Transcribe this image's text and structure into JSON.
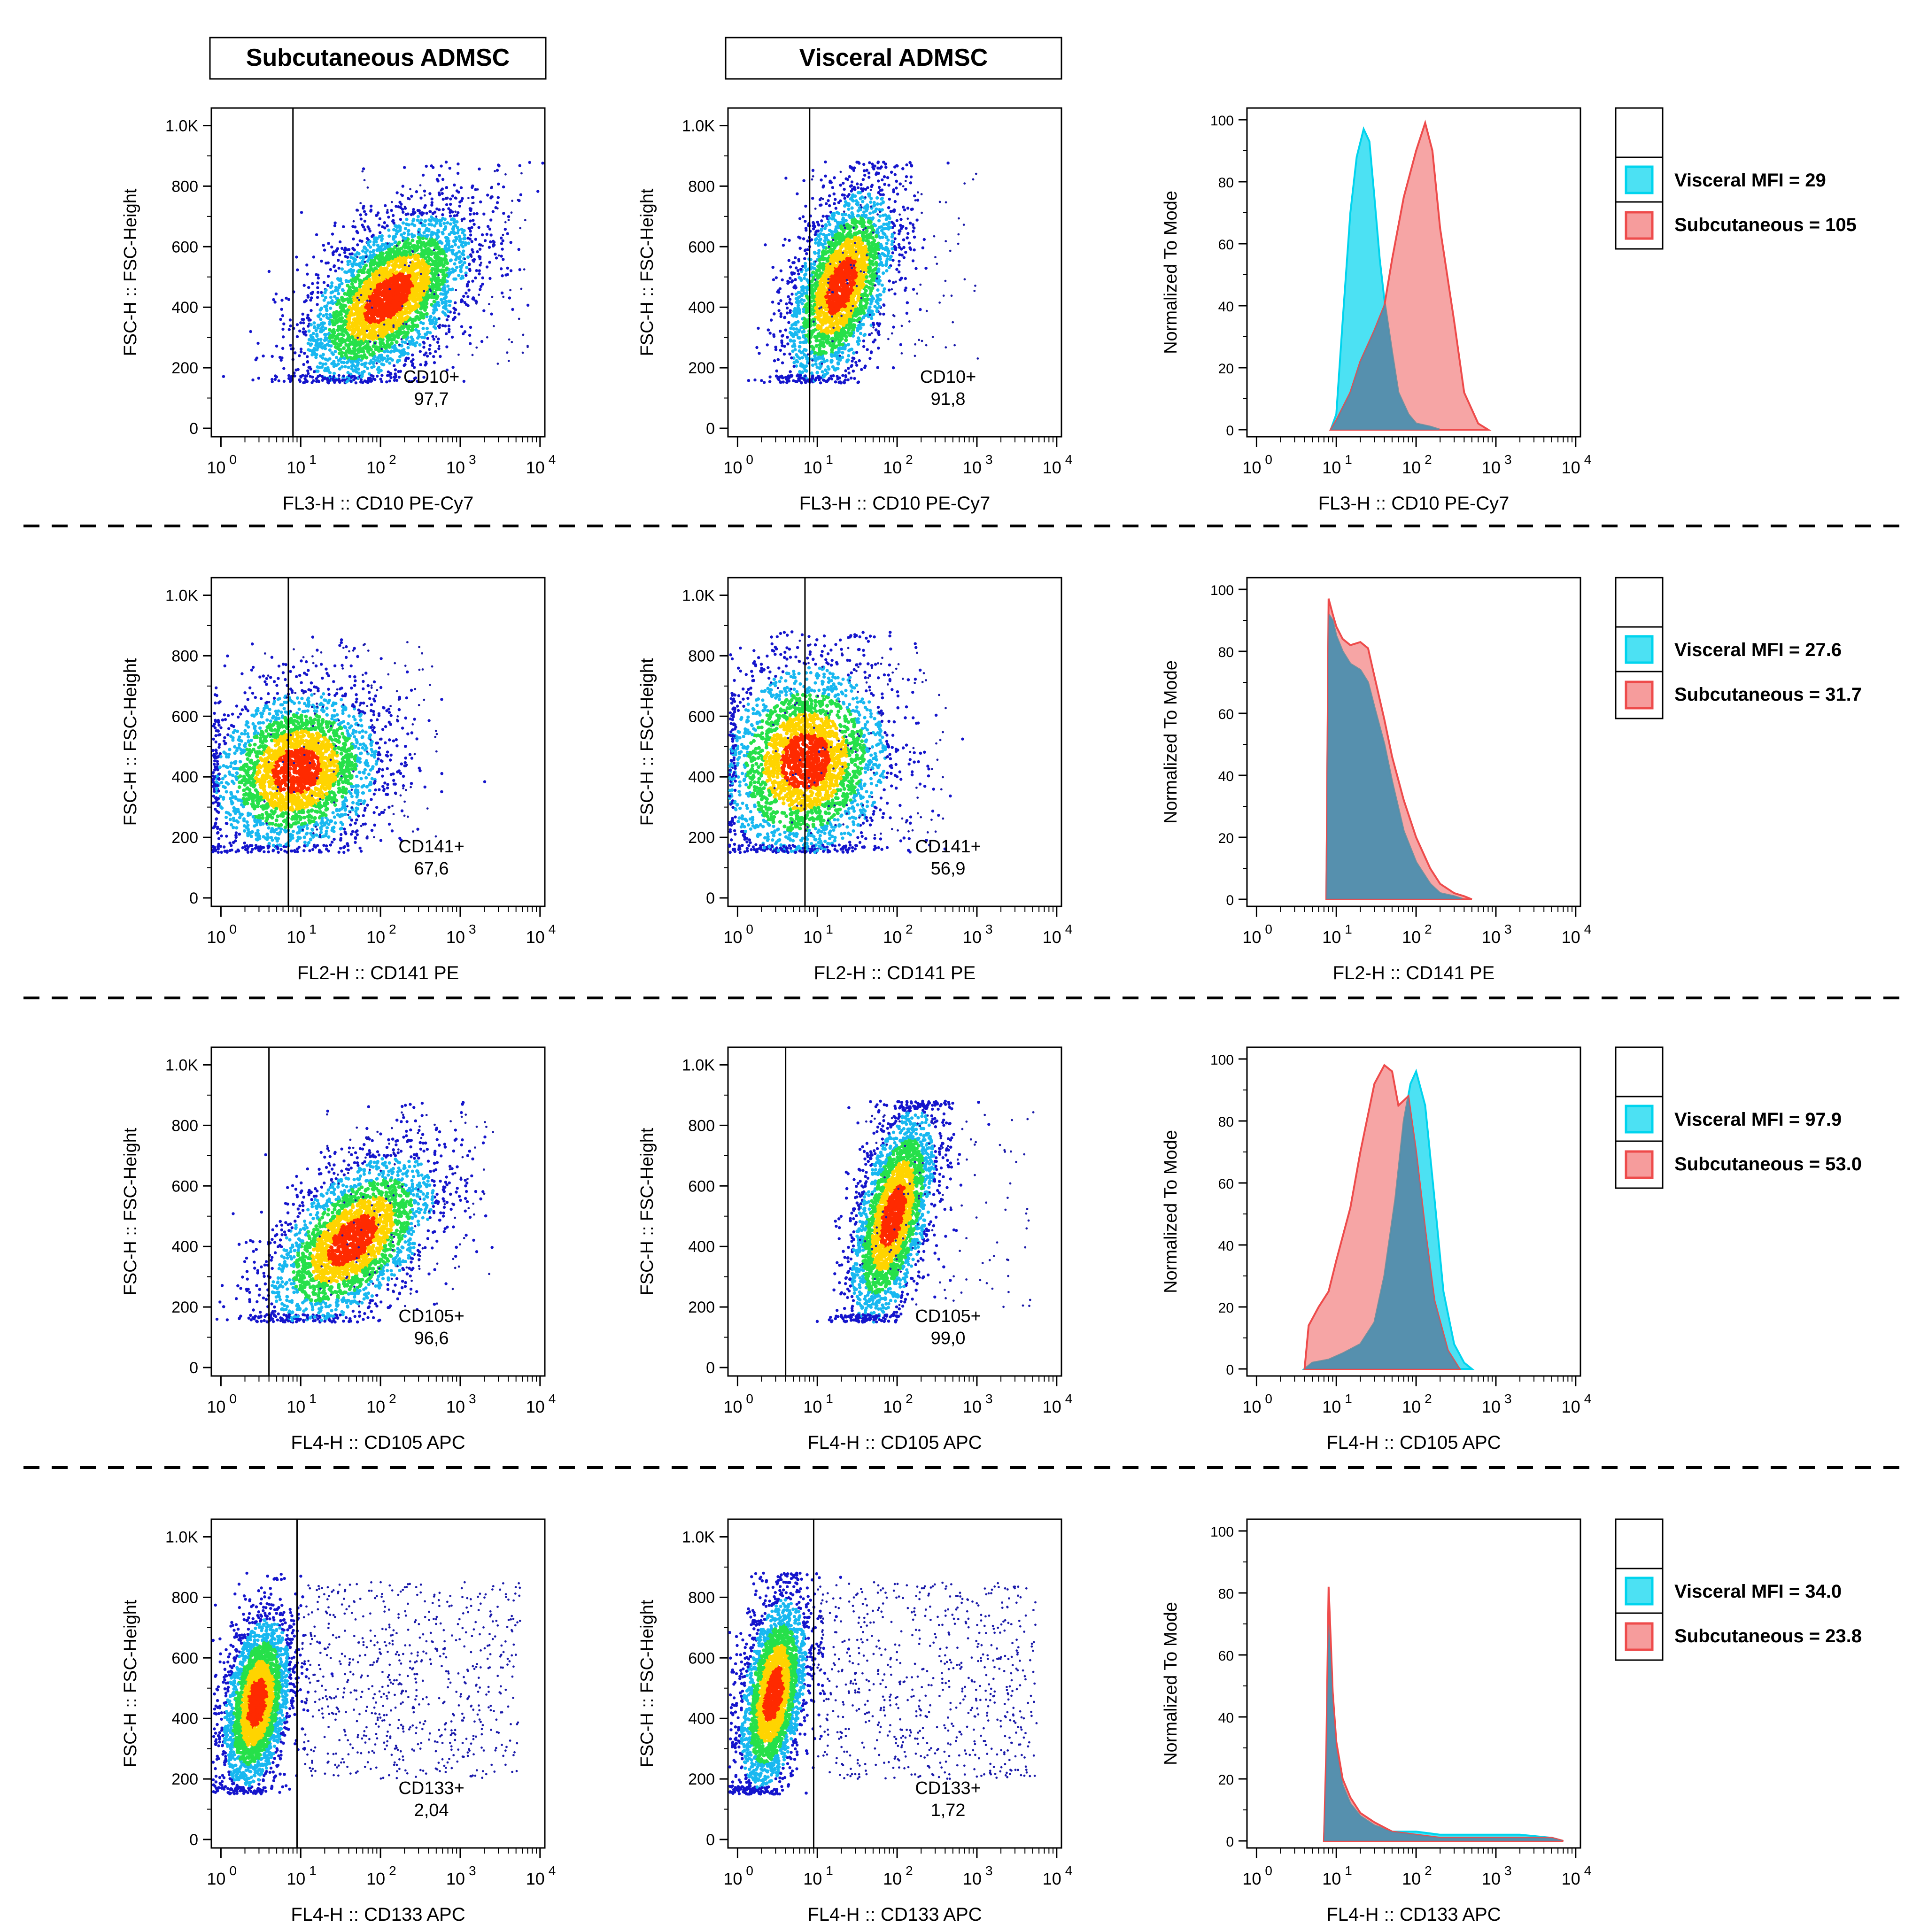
{
  "figure": {
    "column_headers": [
      "Subcutaneous ADMSC",
      "Visceral ADMSC"
    ],
    "dotplot_ylabel": "FSC-H :: FSC-Height",
    "histogram_ylabel": "Normalized To Mode",
    "x_ticks": [
      "0",
      "1",
      "2",
      "3",
      "4"
    ],
    "dot_y_ticks": [
      "0",
      "200",
      "400",
      "600",
      "800",
      "1.0K"
    ],
    "hist_y_ticks": [
      "0",
      "20",
      "40",
      "60",
      "80",
      "100"
    ],
    "colors": {
      "visceral": "#00d4ee",
      "subcutaneous": "#ee4b4b",
      "overlap": "#4a8fb0",
      "frame": "#000000"
    }
  },
  "chart_data": [
    {
      "type": "scatter",
      "row": 1,
      "panel": "Subcutaneous ADMSC",
      "xlabel": "FL3-H :: CD10 PE-Cy7",
      "ylabel": "FSC-H :: FSC-Height",
      "xscale": "log",
      "xlim": [
        1,
        10000
      ],
      "ylim": [
        0,
        1024
      ],
      "gate_x": 8.0,
      "gate_label": "CD10+",
      "gate_value": "97,7",
      "cluster": {
        "center_log_x": 2.1,
        "center_y": 430,
        "sx": 0.55,
        "sy": 150,
        "corr": 0.55
      }
    },
    {
      "type": "scatter",
      "row": 1,
      "panel": "Visceral ADMSC",
      "xlabel": "FL3-H :: CD10 PE-Cy7",
      "ylabel": "FSC-H :: FSC-Height",
      "xscale": "log",
      "xlim": [
        1,
        10000
      ],
      "ylim": [
        0,
        1024
      ],
      "gate_x": 8.0,
      "gate_label": "CD10+",
      "gate_value": "91,8",
      "cluster": {
        "center_log_x": 1.3,
        "center_y": 470,
        "sx": 0.35,
        "sy": 170,
        "corr": 0.5
      }
    },
    {
      "type": "histogram",
      "row": 1,
      "xlabel": "FL3-H :: CD10 PE-Cy7",
      "ylabel": "Normalized To Mode",
      "xscale": "log",
      "xlim": [
        1,
        10000
      ],
      "ylim": [
        0,
        100
      ],
      "series": [
        {
          "name": "Visceral",
          "legend": "Visceral MFI = 29",
          "x": [
            8.5,
            10,
            12,
            15,
            18,
            22,
            26,
            30,
            35,
            40,
            50,
            60,
            80,
            100,
            150,
            200
          ],
          "values": [
            0,
            5,
            35,
            70,
            88,
            97,
            93,
            75,
            55,
            42,
            25,
            12,
            5,
            2,
            1,
            0
          ]
        },
        {
          "name": "Subcutaneous",
          "legend": "Subcutaneous = 105",
          "x": [
            8.5,
            10,
            15,
            20,
            30,
            40,
            50,
            70,
            100,
            130,
            160,
            200,
            300,
            400,
            600,
            800
          ],
          "values": [
            0,
            3,
            12,
            22,
            32,
            40,
            55,
            75,
            90,
            99,
            90,
            65,
            35,
            12,
            2,
            0
          ]
        }
      ]
    },
    {
      "type": "scatter",
      "row": 2,
      "panel": "Subcutaneous ADMSC",
      "xlabel": "FL2-H :: CD141 PE",
      "ylabel": "FSC-H :: FSC-Height",
      "xscale": "log",
      "xlim": [
        1,
        10000
      ],
      "ylim": [
        0,
        1024
      ],
      "gate_x": 7.0,
      "gate_label": "CD141+",
      "gate_value": "67,6",
      "cluster": {
        "center_log_x": 0.95,
        "center_y": 420,
        "sx": 0.55,
        "sy": 140,
        "corr": 0.15
      }
    },
    {
      "type": "scatter",
      "row": 2,
      "panel": "Visceral ADMSC",
      "xlabel": "FL2-H :: CD141 PE",
      "ylabel": "FSC-H :: FSC-Height",
      "xscale": "log",
      "xlim": [
        1,
        10000
      ],
      "ylim": [
        0,
        1024
      ],
      "gate_x": 7.0,
      "gate_label": "CD141+",
      "gate_value": "56,9",
      "cluster": {
        "center_log_x": 0.85,
        "center_y": 450,
        "sx": 0.55,
        "sy": 170,
        "corr": 0.1
      }
    },
    {
      "type": "histogram",
      "row": 2,
      "xlabel": "FL2-H :: CD141 PE",
      "ylabel": "Normalized To Mode",
      "xscale": "log",
      "xlim": [
        1,
        10000
      ],
      "ylim": [
        0,
        100
      ],
      "series": [
        {
          "name": "Visceral",
          "legend": "Visceral MFI = 27.6",
          "x": [
            7.5,
            8,
            9,
            10,
            12,
            15,
            20,
            25,
            30,
            40,
            50,
            70,
            100,
            150,
            200,
            300,
            400
          ],
          "values": [
            0,
            92,
            90,
            85,
            80,
            76,
            74,
            70,
            62,
            50,
            38,
            22,
            12,
            5,
            2,
            1,
            0
          ]
        },
        {
          "name": "Subcutaneous",
          "legend": "Subcutaneous = 31.7",
          "x": [
            7.5,
            8,
            9,
            10,
            12,
            15,
            20,
            25,
            30,
            40,
            50,
            70,
            100,
            150,
            200,
            300,
            400,
            500
          ],
          "values": [
            0,
            97,
            92,
            88,
            84,
            82,
            83,
            81,
            72,
            58,
            46,
            32,
            20,
            10,
            5,
            2,
            1,
            0
          ]
        }
      ]
    },
    {
      "type": "scatter",
      "row": 3,
      "panel": "Subcutaneous ADMSC",
      "xlabel": "FL4-H :: CD105 APC",
      "ylabel": "FSC-H :: FSC-Height",
      "xscale": "log",
      "xlim": [
        1,
        10000
      ],
      "ylim": [
        0,
        1024
      ],
      "gate_x": 4.0,
      "gate_label": "CD105+",
      "gate_value": "96,6",
      "cluster": {
        "center_log_x": 1.65,
        "center_y": 420,
        "sx": 0.55,
        "sy": 150,
        "corr": 0.55
      }
    },
    {
      "type": "scatter",
      "row": 3,
      "panel": "Visceral ADMSC",
      "xlabel": "FL4-H :: CD105 APC",
      "ylabel": "FSC-H :: FSC-Height",
      "xscale": "log",
      "xlim": [
        1,
        10000
      ],
      "ylim": [
        0,
        1024
      ],
      "gate_x": 4.0,
      "gate_label": "CD105+",
      "gate_value": "99,0",
      "cluster": {
        "center_log_x": 1.95,
        "center_y": 500,
        "sx": 0.28,
        "sy": 190,
        "corr": 0.55
      }
    },
    {
      "type": "histogram",
      "row": 3,
      "xlabel": "FL4-H :: CD105 APC",
      "ylabel": "Normalized To Mode",
      "xscale": "log",
      "xlim": [
        1,
        10000
      ],
      "ylim": [
        0,
        100
      ],
      "series": [
        {
          "name": "Visceral",
          "legend": "Visceral MFI = 97.9",
          "x": [
            4,
            5,
            8,
            12,
            20,
            30,
            40,
            55,
            70,
            85,
            100,
            130,
            170,
            220,
            300,
            400,
            500
          ],
          "values": [
            0,
            2,
            3,
            5,
            8,
            15,
            30,
            55,
            80,
            92,
            96,
            85,
            55,
            25,
            8,
            2,
            0
          ]
        },
        {
          "name": "Subcutaneous",
          "legend": "Subcutaneous = 53.0",
          "x": [
            4,
            4.5,
            6,
            8,
            10,
            15,
            20,
            30,
            40,
            50,
            60,
            80,
            100,
            130,
            170,
            250,
            350
          ],
          "values": [
            0,
            14,
            20,
            25,
            35,
            52,
            70,
            92,
            98,
            96,
            85,
            88,
            70,
            45,
            22,
            6,
            0
          ]
        }
      ]
    },
    {
      "type": "scatter",
      "row": 4,
      "panel": "Subcutaneous ADMSC",
      "xlabel": "FL4-H :: CD133 APC",
      "ylabel": "FSC-H :: FSC-Height",
      "xscale": "log",
      "xlim": [
        1,
        10000
      ],
      "ylim": [
        0,
        1024
      ],
      "gate_x": 9.0,
      "gate_label": "CD133+",
      "gate_value": "2,04",
      "cluster": {
        "center_log_x": 0.45,
        "center_y": 450,
        "sx": 0.22,
        "sy": 150,
        "corr": 0.35
      }
    },
    {
      "type": "scatter",
      "row": 4,
      "panel": "Visceral ADMSC",
      "xlabel": "FL4-H :: CD133 APC",
      "ylabel": "FSC-H :: FSC-Height",
      "xscale": "log",
      "xlim": [
        1,
        10000
      ],
      "ylim": [
        0,
        1024
      ],
      "gate_x": 9.0,
      "gate_label": "CD133+",
      "gate_value": "1,72",
      "cluster": {
        "center_log_x": 0.45,
        "center_y": 480,
        "sx": 0.22,
        "sy": 170,
        "corr": 0.4
      }
    },
    {
      "type": "histogram",
      "row": 4,
      "xlabel": "FL4-H :: CD133 APC",
      "ylabel": "Normalized To Mode",
      "xscale": "log",
      "xlim": [
        1,
        10000
      ],
      "ylim": [
        0,
        100
      ],
      "series": [
        {
          "name": "Visceral",
          "legend": "Visceral MFI = 34.0",
          "x": [
            7,
            7.5,
            8,
            8.5,
            9,
            10,
            12,
            15,
            20,
            30,
            50,
            100,
            200,
            500,
            1000,
            2000,
            5000,
            7000
          ],
          "values": [
            0,
            25,
            70,
            60,
            45,
            30,
            18,
            12,
            8,
            5,
            3,
            3,
            2,
            2,
            2,
            2,
            1,
            0
          ]
        },
        {
          "name": "Subcutaneous",
          "legend": "Subcutaneous = 23.8",
          "x": [
            7,
            7.5,
            8,
            8.5,
            9,
            10,
            12,
            15,
            20,
            30,
            50,
            100,
            200,
            500,
            1000,
            2000,
            5000,
            7000
          ],
          "values": [
            0,
            30,
            82,
            65,
            48,
            32,
            20,
            14,
            9,
            6,
            3,
            2,
            1,
            1,
            1,
            1,
            1,
            0
          ]
        }
      ]
    }
  ]
}
